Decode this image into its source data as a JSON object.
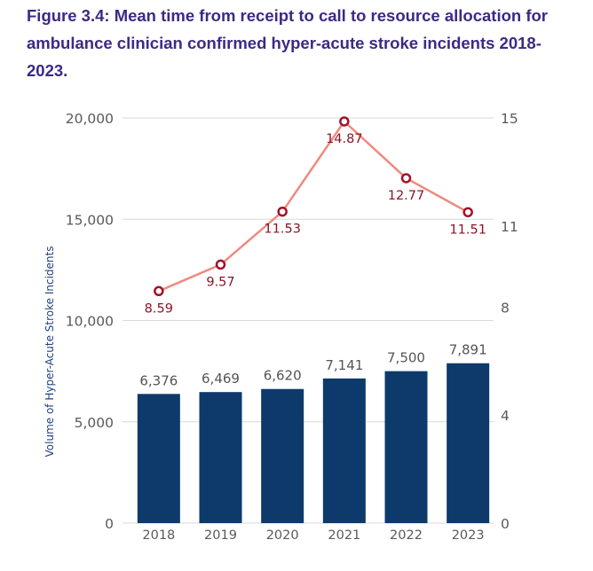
{
  "caption": "Figure 3.4: Mean time from receipt to call to resource allocation for ambulance clinician confirmed hyper-acute stroke incidents 2018-2023.",
  "chart_data": {
    "type": "bar+line",
    "categories": [
      "2018",
      "2019",
      "2020",
      "2021",
      "2022",
      "2023"
    ],
    "series": [
      {
        "type": "bar",
        "axis": "left",
        "values": [
          6376,
          6469,
          6620,
          7141,
          7500,
          7891
        ],
        "labels": [
          "6,376",
          "6,469",
          "6,620",
          "7,141",
          "7,500",
          "7,891"
        ],
        "color": "#0d3a6b"
      },
      {
        "type": "line",
        "axis": "right",
        "values": [
          8.59,
          9.57,
          11.53,
          14.87,
          12.77,
          11.51
        ],
        "labels": [
          "8.59",
          "9.57",
          "11.53",
          "14.87",
          "12.77",
          "11.51"
        ],
        "color": "#ef8a7f",
        "marker_color": "#a0132b"
      }
    ],
    "ylabel_left": "Volume of Hyper-Acute Stroke Incidents",
    "ylim_left": [
      0,
      20000
    ],
    "left_ticks": [
      0,
      5000,
      10000,
      15000,
      20000
    ],
    "left_tick_labels": [
      "0",
      "5,000",
      "10,000",
      "15,000",
      "20,000"
    ],
    "ylim_right": [
      0,
      15
    ],
    "right_ticks": [
      0,
      4,
      8,
      11,
      15
    ],
    "right_tick_labels": [
      "0",
      "4",
      "8",
      "11",
      "15"
    ],
    "grid": true
  }
}
